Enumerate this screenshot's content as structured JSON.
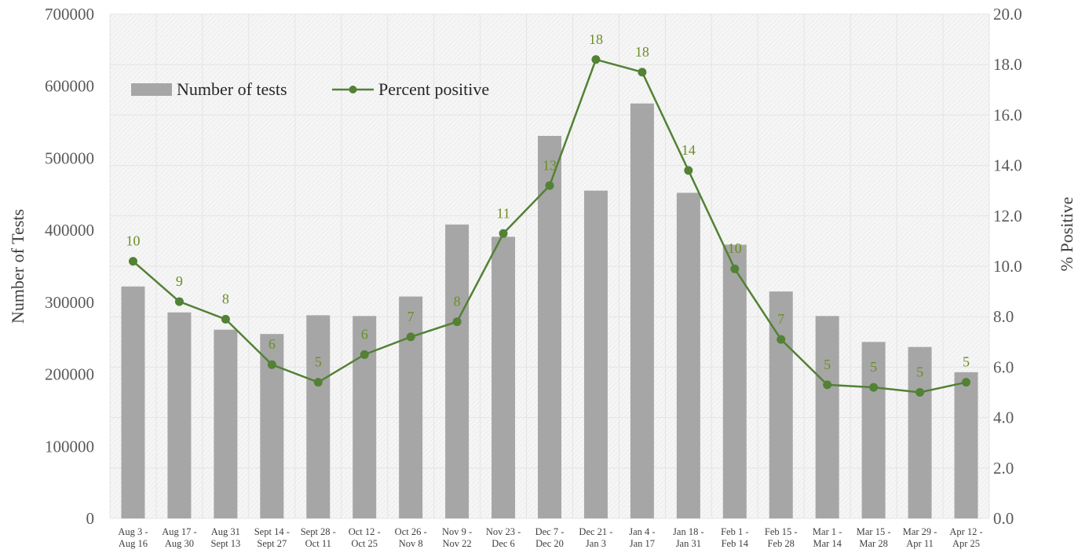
{
  "chart_data": {
    "type": "bar+line",
    "categories": [
      [
        "Aug 3 -",
        "Aug 16"
      ],
      [
        "Aug 17 -",
        "Aug 30"
      ],
      [
        "Aug 31",
        "Sept 13"
      ],
      [
        "Sept 14 -",
        "Sept 27"
      ],
      [
        "Sept 28 -",
        "Oct 11"
      ],
      [
        "Oct 12 -",
        "Oct 25"
      ],
      [
        "Oct 26 -",
        "Nov 8"
      ],
      [
        "Nov 9 -",
        "Nov 22"
      ],
      [
        "Nov 23 -",
        "Dec 6"
      ],
      [
        "Dec 7 -",
        "Dec 20"
      ],
      [
        "Dec 21 -",
        "Jan 3"
      ],
      [
        "Jan 4 -",
        "Jan 17"
      ],
      [
        "Jan 18 -",
        "Jan 31"
      ],
      [
        "Feb 1 -",
        "Feb 14"
      ],
      [
        "Feb 15 -",
        "Feb 28"
      ],
      [
        "Mar 1 -",
        "Mar 14"
      ],
      [
        "Mar 15 -",
        "Mar 28"
      ],
      [
        "Mar 29 -",
        "Apr 11"
      ],
      [
        "Apr 12 -",
        "Apr 25"
      ]
    ],
    "series": [
      {
        "name": "Number of tests",
        "type": "bar",
        "axis": "left",
        "color": "#a6a6a6",
        "values": [
          322000,
          286000,
          262000,
          256000,
          282000,
          281000,
          308000,
          408000,
          391000,
          531000,
          455000,
          576000,
          452000,
          380000,
          315000,
          281000,
          245000,
          238000,
          203000
        ]
      },
      {
        "name": "Percent positive",
        "type": "line",
        "axis": "right",
        "color": "#538135",
        "values": [
          10.2,
          8.6,
          7.9,
          6.1,
          5.4,
          6.5,
          7.2,
          7.8,
          11.3,
          13.2,
          18.2,
          17.7,
          13.8,
          9.9,
          7.1,
          5.3,
          5.2,
          5.0,
          5.4
        ],
        "labels": [
          "10",
          "9",
          "8",
          "6",
          "5",
          "6",
          "7",
          "8",
          "11",
          "13",
          "18",
          "18",
          "14",
          "10",
          "7",
          "5",
          "5",
          "5",
          "5"
        ]
      }
    ],
    "ylabel": "Number of Tests",
    "y2label": "% Positive",
    "ylim": [
      0,
      700000
    ],
    "y2lim": [
      0,
      20
    ],
    "yticks": [
      "0",
      "100000",
      "200000",
      "300000",
      "400000",
      "500000",
      "600000",
      "700000"
    ],
    "y2ticks": [
      "0.0",
      "2.0",
      "4.0",
      "6.0",
      "8.0",
      "10.0",
      "12.0",
      "14.0",
      "16.0",
      "18.0",
      "20.0"
    ],
    "grid": true,
    "legend_position": "top-left"
  }
}
